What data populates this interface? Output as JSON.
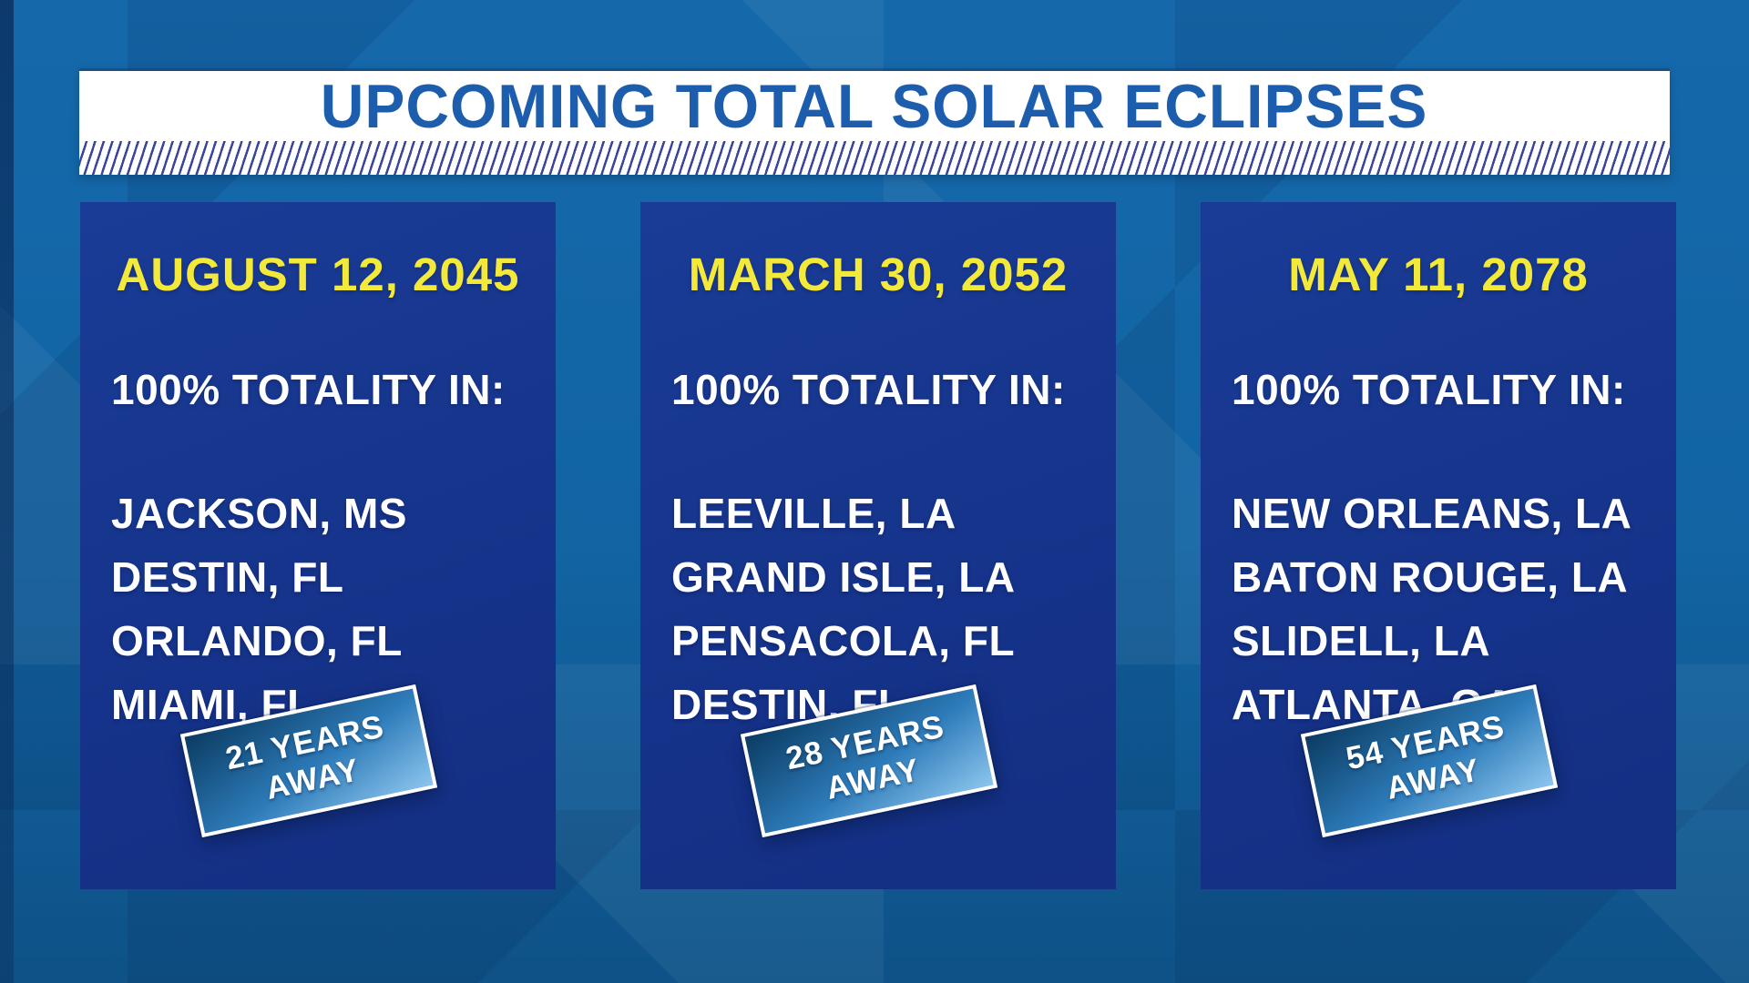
{
  "header": {
    "title": "UPCOMING TOTAL SOLAR ECLIPSES"
  },
  "colors": {
    "background_blue": "#1266a6",
    "panel_blue": "#15338a",
    "title_blue": "#1d5dad",
    "banner_white": "#ffffff",
    "hatch_navy": "#3a459b",
    "date_yellow": "#f3e93a",
    "body_text_white": "#ffffff",
    "badge_gradient_dark": "#0b3c63",
    "badge_gradient_light": "#8cc5ed"
  },
  "panels": [
    {
      "date": "AUGUST 12, 2045",
      "totality_label": "100% TOTALITY IN:",
      "cities": [
        "JACKSON, MS",
        "DESTIN, FL",
        "ORLANDO, FL",
        "MIAMI, FL"
      ],
      "badge_lines": [
        "21 YEARS",
        "AWAY"
      ]
    },
    {
      "date": "MARCH 30, 2052",
      "totality_label": "100% TOTALITY IN:",
      "cities": [
        "LEEVILLE, LA",
        "GRAND ISLE, LA",
        "PENSACOLA, FL",
        "DESTIN, FL"
      ],
      "badge_lines": [
        "28 YEARS",
        "AWAY"
      ]
    },
    {
      "date": "MAY 11, 2078",
      "totality_label": "100% TOTALITY IN:",
      "cities": [
        "NEW ORLEANS, LA",
        "BATON ROUGE, LA",
        "SLIDELL, LA",
        "ATLANTA, GA"
      ],
      "badge_lines": [
        "54 YEARS",
        "AWAY"
      ]
    }
  ]
}
